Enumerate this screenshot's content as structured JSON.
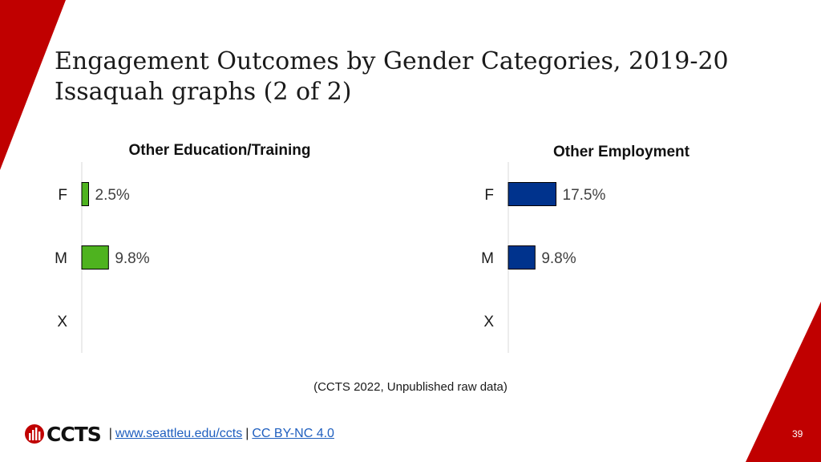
{
  "slide": {
    "title_line1": "Engagement Outcomes by Gender Categories, 2019-20",
    "title_line2": "Issaquah graphs (2 of 2)",
    "source": "(CCTS 2022, Unpublished raw data)",
    "footer": {
      "logo_text": "CCTS",
      "separator": "|",
      "link1": "www.seattleu.edu/ccts",
      "link2": "CC BY-NC 4.0"
    },
    "page_number": "39",
    "accent_color": "#c00000"
  },
  "chart_data": [
    {
      "type": "bar",
      "orientation": "horizontal",
      "title": "Other Education/Training",
      "categories": [
        "F",
        "M",
        "X"
      ],
      "values": [
        2.5,
        9.8,
        null
      ],
      "value_labels": [
        "2.5%",
        "9.8%",
        ""
      ],
      "color": "#4eb31f",
      "xlim": [
        0,
        100
      ],
      "grid": false,
      "legend": "none"
    },
    {
      "type": "bar",
      "orientation": "horizontal",
      "title": "Other Employment",
      "categories": [
        "F",
        "M",
        "X"
      ],
      "values": [
        17.5,
        9.8,
        null
      ],
      "value_labels": [
        "17.5%",
        "9.8%",
        ""
      ],
      "color": "#00338d",
      "xlim": [
        0,
        100
      ],
      "grid": false,
      "legend": "none"
    }
  ]
}
